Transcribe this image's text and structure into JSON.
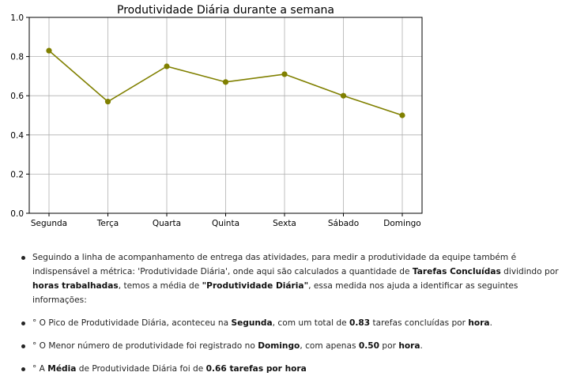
{
  "chart_data": {
    "type": "line",
    "title": "Produtividade Diária durante a semana",
    "categories": [
      "Segunda",
      "Terça",
      "Quarta",
      "Quinta",
      "Sexta",
      "Sábado",
      "Domingo"
    ],
    "series": [
      {
        "values": [
          0.83,
          0.57,
          0.75,
          0.67,
          0.71,
          0.6,
          0.5
        ]
      }
    ],
    "ylim": [
      0.0,
      1.0
    ],
    "yticks": [
      "0.0",
      "0.2",
      "0.4",
      "0.6",
      "0.8",
      "1.0"
    ],
    "grid": true,
    "line_color": "#808000"
  },
  "notes": [
    [
      {
        "t": "Seguindo a linha de acompanhamento de entrega das atividades, para medir a produtividade da equipe também é indispensável a métrica: 'Produtividade Diária', onde aqui são calculados a quantidade de "
      },
      {
        "t": "Tarefas Concluídas",
        "b": true
      },
      {
        "t": " dividindo por "
      },
      {
        "t": "horas trabalhadas",
        "b": true
      },
      {
        "t": ", temos a média de "
      },
      {
        "t": "\"Produtividade Diária\"",
        "b": true
      },
      {
        "t": ", essa medida nos ajuda a identificar as seguintes informações:"
      }
    ],
    [
      {
        "t": "° O Pico de Produtividade Diária, aconteceu na "
      },
      {
        "t": "Segunda",
        "b": true
      },
      {
        "t": ", com um total de "
      },
      {
        "t": "0.83",
        "b": true
      },
      {
        "t": " tarefas concluídas por "
      },
      {
        "t": "hora",
        "b": true
      },
      {
        "t": "."
      }
    ],
    [
      {
        "t": "° O Menor número de produtividade foi registrado no "
      },
      {
        "t": "Domingo",
        "b": true
      },
      {
        "t": ", com apenas "
      },
      {
        "t": "0.50",
        "b": true
      },
      {
        "t": " por "
      },
      {
        "t": "hora",
        "b": true
      },
      {
        "t": "."
      }
    ],
    [
      {
        "t": "° A "
      },
      {
        "t": "Média",
        "b": true
      },
      {
        "t": " de Produtividade Diária foi de "
      },
      {
        "t": "0.66 tarefas por hora",
        "b": true
      }
    ]
  ]
}
